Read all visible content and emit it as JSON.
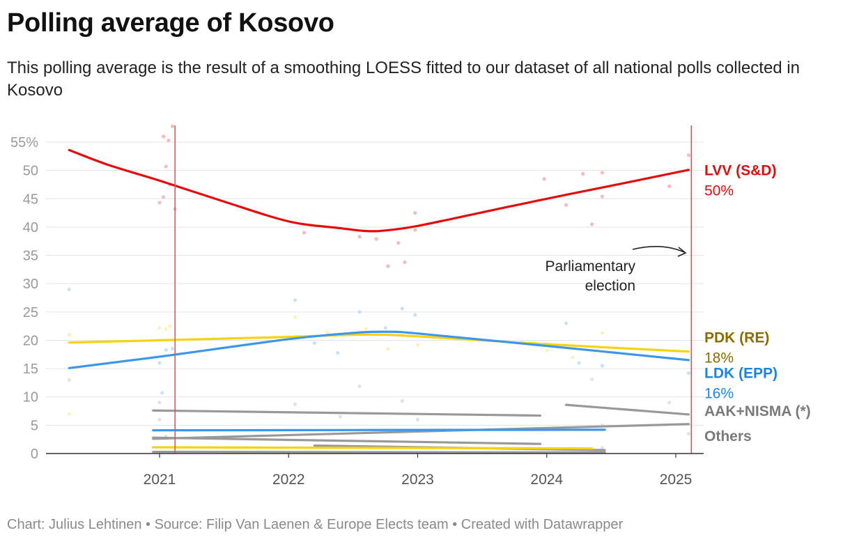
{
  "title": "Polling average of Kosovo",
  "subtitle": "This polling average is the result of a smoothing LOESS fitted to our dataset of all national polls collected in Kosovo",
  "footer": "Chart: Julius Lehtinen • Source: Filip Van Laenen & Europe Elects team • Created with Datawrapper",
  "chart_data": {
    "type": "line",
    "ylim": [
      0,
      57
    ],
    "xlim": [
      2020.2,
      2025.2
    ],
    "yticks": [
      {
        "value": 0,
        "label": "0"
      },
      {
        "value": 5,
        "label": "5"
      },
      {
        "value": 10,
        "label": "10"
      },
      {
        "value": 15,
        "label": "15"
      },
      {
        "value": 20,
        "label": "20"
      },
      {
        "value": 25,
        "label": "25"
      },
      {
        "value": 30,
        "label": "30"
      },
      {
        "value": 35,
        "label": "35"
      },
      {
        "value": 40,
        "label": "40"
      },
      {
        "value": 45,
        "label": "45"
      },
      {
        "value": 50,
        "label": "50"
      },
      {
        "value": 55,
        "label": "55%"
      }
    ],
    "xticks": [
      {
        "value": 2021,
        "label": "2021"
      },
      {
        "value": 2022,
        "label": "2022"
      },
      {
        "value": 2023,
        "label": "2023"
      },
      {
        "value": 2024,
        "label": "2024"
      },
      {
        "value": 2025,
        "label": "2025"
      }
    ],
    "grid": true,
    "elections": [
      2021.12,
      2025.12
    ],
    "annotation": {
      "line1": "Parliamentary",
      "line2": "election",
      "target": [
        2025.05,
        35.5
      ]
    },
    "series": [
      {
        "name": "LVV (S&D)",
        "end_label": "50%",
        "color": "#e30b0b",
        "label_color": "#e30b0b",
        "label_at": 50,
        "x": [
          2020.3,
          2020.6,
          2021.0,
          2021.5,
          2022.0,
          2022.4,
          2022.6,
          2022.75,
          2023.0,
          2023.5,
          2024.0,
          2024.5,
          2025.1
        ],
        "y": [
          53.6,
          51.0,
          48.2,
          44.5,
          41.0,
          39.8,
          39.3,
          39.4,
          40.2,
          42.6,
          45.0,
          47.3,
          50.1
        ],
        "points": [
          [
            2021.03,
            56.0
          ],
          [
            2021.07,
            55.3
          ],
          [
            2021.1,
            57.8
          ],
          [
            2021.05,
            50.7
          ],
          [
            2021.08,
            47.5
          ],
          [
            2021.03,
            45.3
          ],
          [
            2021.0,
            44.3
          ],
          [
            2021.12,
            43.2
          ],
          [
            2022.12,
            39.0
          ],
          [
            2022.55,
            38.3
          ],
          [
            2022.68,
            37.9
          ],
          [
            2022.85,
            37.2
          ],
          [
            2022.77,
            33.1
          ],
          [
            2022.9,
            33.8
          ],
          [
            2022.98,
            42.5
          ],
          [
            2022.98,
            39.5
          ],
          [
            2023.98,
            48.5
          ],
          [
            2024.15,
            43.9
          ],
          [
            2024.28,
            49.4
          ],
          [
            2024.35,
            40.5
          ],
          [
            2024.43,
            49.6
          ],
          [
            2024.43,
            45.4
          ],
          [
            2024.95,
            47.2
          ],
          [
            2025.1,
            52.7
          ]
        ]
      },
      {
        "name": "PDK (RE)",
        "end_label": "18%",
        "color": "#f6d30d",
        "label_color": "#8a6d00",
        "label_at": 20.5,
        "x": [
          2020.3,
          2021.0,
          2022.0,
          2022.6,
          2023.0,
          2024.0,
          2025.1
        ],
        "y": [
          19.6,
          20.0,
          20.6,
          21.0,
          20.7,
          19.3,
          18.0
        ],
        "points": [
          [
            2020.3,
            21.0
          ],
          [
            2021.0,
            22.2
          ],
          [
            2021.05,
            22.0
          ],
          [
            2021.08,
            22.5
          ],
          [
            2022.05,
            24.1
          ],
          [
            2022.3,
            21.4
          ],
          [
            2022.6,
            22.0
          ],
          [
            2022.77,
            18.5
          ],
          [
            2023.0,
            19.2
          ],
          [
            2024.0,
            18.2
          ],
          [
            2024.2,
            17.0
          ],
          [
            2024.43,
            21.3
          ],
          [
            2020.3,
            7.0
          ]
        ]
      },
      {
        "name": "LDK (EPP)",
        "end_label": "16%",
        "color": "#3b97eb",
        "label_color": "#1f84e0",
        "label_at": 14.2,
        "x": [
          2020.3,
          2021.0,
          2022.0,
          2022.5,
          2022.75,
          2023.0,
          2024.0,
          2025.1
        ],
        "y": [
          15.1,
          17.1,
          20.2,
          21.3,
          21.5,
          21.2,
          19.0,
          16.5
        ],
        "points": [
          [
            2020.3,
            29.0
          ],
          [
            2022.05,
            27.1
          ],
          [
            2022.55,
            25.0
          ],
          [
            2022.88,
            25.6
          ],
          [
            2022.98,
            24.5
          ],
          [
            2021.05,
            18.3
          ],
          [
            2021.1,
            18.5
          ],
          [
            2022.2,
            19.5
          ],
          [
            2022.38,
            17.8
          ],
          [
            2022.75,
            22.2
          ],
          [
            2024.15,
            23.0
          ],
          [
            2024.25,
            16.0
          ],
          [
            2024.43,
            15.5
          ],
          [
            2025.1,
            14.2
          ],
          [
            2021.02,
            10.7
          ],
          [
            2021.0,
            16.0
          ]
        ]
      },
      {
        "name": "AAK+NISMA (*)",
        "end_label": "",
        "color": "#999999",
        "label_color": "#7a7a7a",
        "label_at": 7.5,
        "segments": [
          {
            "x": [
              2020.95,
              2023.95
            ],
            "y": [
              7.6,
              6.7
            ]
          },
          {
            "x": [
              2024.15,
              2025.1
            ],
            "y": [
              8.6,
              6.9
            ]
          }
        ],
        "points": [
          [
            2020.3,
            13.0
          ],
          [
            2021.0,
            9.0
          ],
          [
            2022.05,
            8.7
          ],
          [
            2022.55,
            11.9
          ],
          [
            2022.88,
            9.3
          ],
          [
            2024.35,
            13.1
          ],
          [
            2025.1,
            3.5
          ],
          [
            2024.95,
            9.0
          ]
        ]
      },
      {
        "name": "Others",
        "end_label": "",
        "color": "#999999",
        "label_color": "#7a7a7a",
        "label_at": 3.1,
        "segments": [
          {
            "x": [
              2020.95,
              2025.1
            ],
            "y": [
              2.6,
              5.2
            ]
          },
          {
            "x": [
              2020.95,
              2023.95
            ],
            "y": [
              2.8,
              1.7
            ]
          },
          {
            "x": [
              2022.2,
              2024.45
            ],
            "y": [
              1.4,
              0.6
            ]
          },
          {
            "x": [
              2020.95,
              2024.45
            ],
            "y": [
              0.3,
              0.2
            ]
          }
        ],
        "points": [
          [
            2021.0,
            6.0
          ],
          [
            2021.05,
            3.0
          ],
          [
            2022.4,
            6.5
          ],
          [
            2023.0,
            6.0
          ],
          [
            2024.43,
            5.0
          ],
          [
            2024.43,
            1.0
          ]
        ]
      },
      {
        "name": "",
        "end_label": "",
        "color": "#3b97eb",
        "segments": [
          {
            "x": [
              2020.95,
              2024.45
            ],
            "y": [
              4.1,
              4.2
            ]
          }
        ],
        "points": []
      },
      {
        "name": "",
        "end_label": "",
        "color": "#f6d30d",
        "segments": [
          {
            "x": [
              2020.95,
              2024.35
            ],
            "y": [
              1.1,
              0.9
            ]
          }
        ],
        "points": []
      }
    ]
  }
}
